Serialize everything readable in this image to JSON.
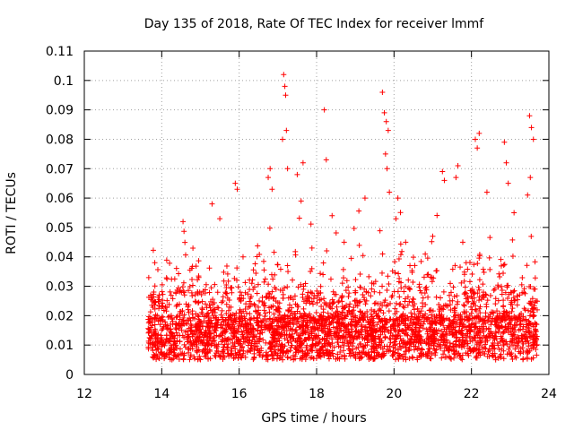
{
  "chart_data": {
    "type": "scatter",
    "title": "Day 135 of 2018, Rate Of TEC Index for receiver lmmf",
    "xlabel": "GPS time / hours",
    "ylabel": "ROTI / TECUs",
    "xlim": [
      12,
      24
    ],
    "ylim": [
      0,
      0.11
    ],
    "xticks": [
      12,
      14,
      16,
      18,
      20,
      22,
      24
    ],
    "xtick_labels": [
      "12",
      "14",
      "16",
      "18",
      "20",
      "22",
      "24"
    ],
    "yticks": [
      0,
      0.01,
      0.02,
      0.03,
      0.04,
      0.05,
      0.06,
      0.07,
      0.08,
      0.09,
      0.1,
      0.11
    ],
    "ytick_labels": [
      "0",
      "0.01",
      "0.02",
      "0.03",
      "0.04",
      "0.05",
      "0.06",
      "0.07",
      "0.08",
      "0.09",
      "0.1",
      "0.11"
    ],
    "grid": true,
    "marker": "+",
    "color": "#ff0000",
    "series": [
      {
        "name": "ROTI",
        "x_range": [
          13.65,
          23.7
        ],
        "baseline_band": [
          0.005,
          0.02
        ],
        "outliers": [
          {
            "x": 17.15,
            "y": 0.102
          },
          {
            "x": 17.18,
            "y": 0.098
          },
          {
            "x": 17.2,
            "y": 0.095
          },
          {
            "x": 17.22,
            "y": 0.083
          },
          {
            "x": 17.12,
            "y": 0.08
          },
          {
            "x": 17.25,
            "y": 0.07
          },
          {
            "x": 16.8,
            "y": 0.07
          },
          {
            "x": 16.75,
            "y": 0.067
          },
          {
            "x": 17.5,
            "y": 0.068
          },
          {
            "x": 17.65,
            "y": 0.072
          },
          {
            "x": 17.6,
            "y": 0.059
          },
          {
            "x": 18.2,
            "y": 0.09
          },
          {
            "x": 18.25,
            "y": 0.073
          },
          {
            "x": 18.4,
            "y": 0.054
          },
          {
            "x": 19.7,
            "y": 0.096
          },
          {
            "x": 19.75,
            "y": 0.089
          },
          {
            "x": 19.8,
            "y": 0.086
          },
          {
            "x": 19.85,
            "y": 0.083
          },
          {
            "x": 19.78,
            "y": 0.075
          },
          {
            "x": 19.82,
            "y": 0.07
          },
          {
            "x": 19.88,
            "y": 0.062
          },
          {
            "x": 20.1,
            "y": 0.06
          },
          {
            "x": 20.05,
            "y": 0.053
          },
          {
            "x": 19.25,
            "y": 0.06
          },
          {
            "x": 21.25,
            "y": 0.069
          },
          {
            "x": 21.3,
            "y": 0.066
          },
          {
            "x": 21.65,
            "y": 0.071
          },
          {
            "x": 21.6,
            "y": 0.067
          },
          {
            "x": 22.1,
            "y": 0.08
          },
          {
            "x": 22.2,
            "y": 0.082
          },
          {
            "x": 22.15,
            "y": 0.077
          },
          {
            "x": 22.4,
            "y": 0.062
          },
          {
            "x": 22.85,
            "y": 0.079
          },
          {
            "x": 22.9,
            "y": 0.072
          },
          {
            "x": 22.95,
            "y": 0.065
          },
          {
            "x": 23.5,
            "y": 0.088
          },
          {
            "x": 23.55,
            "y": 0.084
          },
          {
            "x": 23.6,
            "y": 0.08
          },
          {
            "x": 23.52,
            "y": 0.067
          },
          {
            "x": 23.45,
            "y": 0.061
          },
          {
            "x": 15.9,
            "y": 0.065
          },
          {
            "x": 15.95,
            "y": 0.063
          },
          {
            "x": 16.85,
            "y": 0.063
          },
          {
            "x": 16.1,
            "y": 0.04
          },
          {
            "x": 14.55,
            "y": 0.052
          },
          {
            "x": 15.5,
            "y": 0.053
          },
          {
            "x": 15.3,
            "y": 0.058
          },
          {
            "x": 20.3,
            "y": 0.045
          },
          {
            "x": 21.0,
            "y": 0.047
          },
          {
            "x": 23.1,
            "y": 0.055
          }
        ]
      }
    ]
  }
}
